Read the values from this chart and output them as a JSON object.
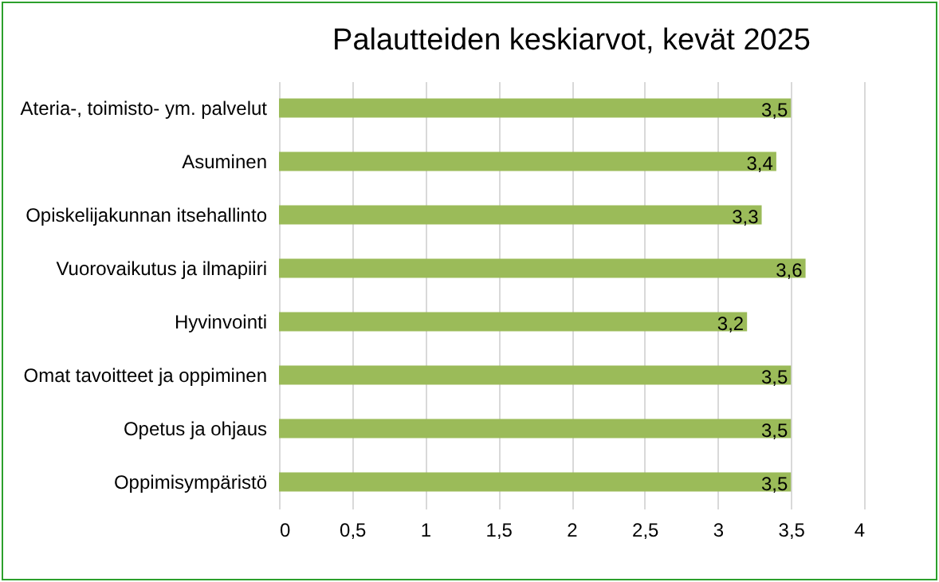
{
  "chart_data": {
    "type": "bar",
    "orientation": "horizontal",
    "title": "Palautteiden keskiarvot, kevät 2025",
    "categories": [
      "Ateria-, toimisto- ym. palvelut",
      "Asuminen",
      "Opiskelijakunnan itsehallinto",
      "Vuorovaikutus ja ilmapiiri",
      "Hyvinvointi",
      "Omat tavoitteet ja oppiminen",
      "Opetus ja ohjaus",
      "Oppimisympäristö"
    ],
    "values": [
      3.5,
      3.4,
      3.3,
      3.6,
      3.2,
      3.5,
      3.5,
      3.5
    ],
    "value_labels": [
      "3,5",
      "3,4",
      "3,3",
      "3,6",
      "3,2",
      "3,5",
      "3,5",
      "3,5"
    ],
    "color": "#9bbb59",
    "xlim": [
      0,
      4
    ],
    "xticks": [
      0,
      {
        "value": 0.5,
        "label": "0,5"
      },
      1,
      {
        "value": 1.5,
        "label": "1,5"
      },
      2,
      {
        "value": 2.5,
        "label": "2,5"
      },
      3,
      {
        "value": 3.5,
        "label": "3,5"
      },
      4
    ],
    "grid": "x"
  }
}
